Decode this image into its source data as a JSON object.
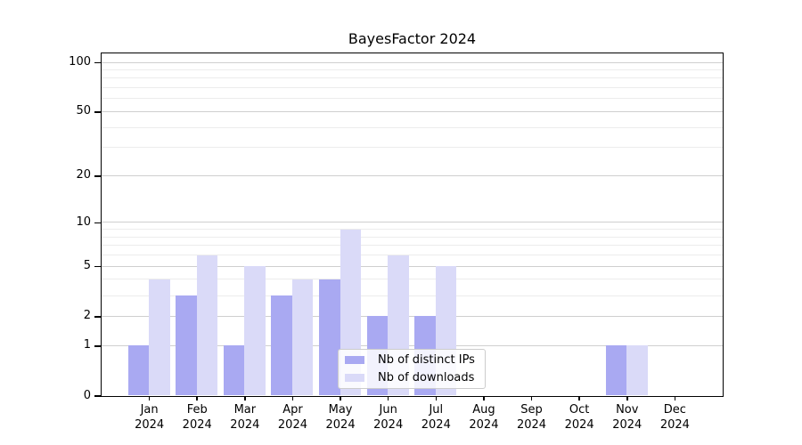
{
  "title": "BayesFactor 2024",
  "chart_data": {
    "type": "bar",
    "title": "BayesFactor 2024",
    "categories": [
      "Jan",
      "Feb",
      "Mar",
      "Apr",
      "May",
      "Jun",
      "Jul",
      "Aug",
      "Sep",
      "Oct",
      "Nov",
      "Dec"
    ],
    "category_year": "2024",
    "series": [
      {
        "name": "Nb of distinct IPs",
        "color": "#a9a9f2",
        "values": [
          1,
          3,
          1,
          3,
          4,
          2,
          2,
          0,
          0,
          0,
          1,
          0
        ]
      },
      {
        "name": "Nb of downloads",
        "color": "#dadaf8",
        "values": [
          4,
          6,
          5,
          4,
          9,
          6,
          5,
          0,
          0,
          0,
          1,
          0
        ]
      }
    ],
    "y_axis": {
      "scale": "log10(1+x)",
      "major_ticks": [
        0,
        1,
        2,
        5,
        10,
        20,
        50,
        100
      ],
      "minor_ticks": [
        3,
        4,
        6,
        7,
        8,
        9,
        30,
        40,
        60,
        70,
        80,
        90
      ],
      "ylim": [
        0,
        113
      ]
    },
    "x_axis": {
      "ticks_per_category": true
    },
    "grid": true,
    "legend_position": "lower center"
  },
  "colors": {
    "grid_major": "#cfcfcf",
    "grid_minor": "#ececec",
    "spine": "#000000",
    "background": "#ffffff"
  }
}
